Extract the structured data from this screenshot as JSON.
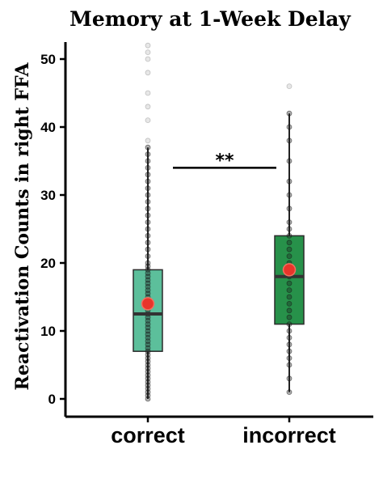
{
  "chart_data": {
    "type": "box",
    "title": "Memory at 1-Week Delay",
    "ylabel": "Reactivation Counts in right FFA",
    "xlabel": "",
    "ylim": [
      -2.5,
      53
    ],
    "yticks": [
      0,
      10,
      20,
      30,
      40,
      50
    ],
    "categories": [
      "correct",
      "incorrect"
    ],
    "colors": [
      "#5cbf9b",
      "#27914a"
    ],
    "boxes": [
      {
        "category": "correct",
        "q1": 7,
        "median": 12.5,
        "q3": 19,
        "mean": 14,
        "whisker_low": 0,
        "whisker_high": 37,
        "outliers": [
          38,
          41,
          43,
          45,
          48,
          50,
          51,
          52
        ],
        "points": [
          0,
          0.5,
          1,
          1.5,
          2,
          2.5,
          3,
          3.5,
          4,
          4.5,
          5,
          5.5,
          6,
          6.5,
          7,
          7.5,
          8,
          8.5,
          9,
          9.5,
          10,
          10.5,
          11,
          11.5,
          12,
          12.5,
          13,
          13.5,
          14,
          14.5,
          15,
          15.5,
          16,
          16.5,
          17,
          17.5,
          18,
          18.5,
          19,
          19.5,
          20,
          21,
          22,
          23,
          24,
          25,
          26,
          27,
          28,
          29,
          30,
          31,
          32,
          33,
          34,
          35,
          36,
          37
        ]
      },
      {
        "category": "incorrect",
        "q1": 11,
        "median": 18,
        "q3": 24,
        "mean": 19,
        "whisker_low": 1,
        "whisker_high": 42,
        "outliers": [
          46
        ],
        "points": [
          1,
          3,
          5,
          6,
          7,
          8,
          9,
          10,
          11,
          12,
          13,
          14,
          15,
          16,
          17,
          18,
          19,
          20,
          21,
          22,
          23,
          24,
          25,
          26,
          28,
          30,
          32,
          35,
          38,
          40,
          42
        ]
      }
    ],
    "significance": {
      "label": "**",
      "from": "correct",
      "to": "incorrect",
      "y": 34
    },
    "grid": false,
    "legend": "none"
  }
}
